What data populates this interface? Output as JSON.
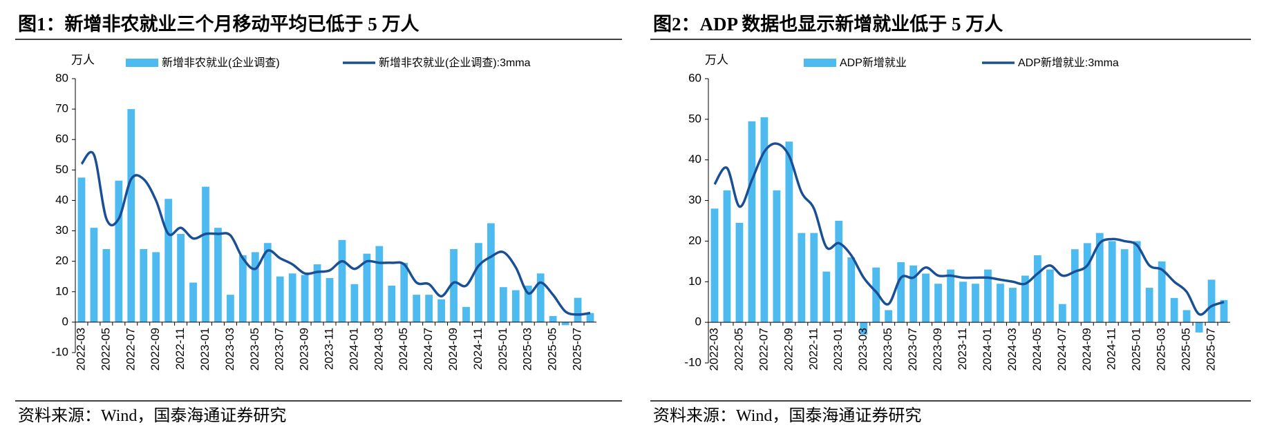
{
  "chart_data": [
    {
      "type": "combo",
      "title": "图1：新增非农就业三个月移动平均已低于 5 万人",
      "y_label": "万人",
      "source": "资料来源：Wind，国泰海通证券研究",
      "categories": [
        "2022-03",
        null,
        "2022-05",
        null,
        "2022-07",
        null,
        "2022-09",
        null,
        "2022-11",
        null,
        "2023-01",
        null,
        "2023-03",
        null,
        "2023-05",
        null,
        "2023-07",
        null,
        "2023-09",
        null,
        "2023-11",
        null,
        "2024-01",
        null,
        "2024-03",
        null,
        "2024-05",
        null,
        "2024-07",
        null,
        "2024-09",
        null,
        "2024-11",
        null,
        "2025-01",
        null,
        "2025-03",
        null,
        "2025-05",
        null,
        "2025-07",
        null
      ],
      "series": [
        {
          "name": "新增非农就业(企业调查)",
          "type": "bar",
          "color": "#4dbbef",
          "values": [
            47.5,
            31,
            24,
            46.5,
            70,
            24,
            23,
            40.5,
            29,
            13,
            44.5,
            31,
            9,
            22,
            23,
            26,
            15,
            16,
            15.5,
            19,
            14.5,
            27,
            12.5,
            22.5,
            25,
            12,
            19.5,
            9,
            9,
            7.5,
            24,
            5,
            26,
            32.5,
            11.5,
            10.5,
            12,
            16,
            2,
            -1,
            8,
            3
          ]
        },
        {
          "name": "新增非农就业(企业调查):3mma",
          "type": "line",
          "color": "#1a4f96",
          "values": [
            52,
            55,
            34,
            34,
            47,
            47,
            40,
            29,
            31,
            27.5,
            29,
            29,
            28.5,
            21,
            17.5,
            23.5,
            21,
            19,
            16,
            16.5,
            17,
            20,
            17.5,
            20,
            19.5,
            19.5,
            19,
            13,
            12.5,
            8.5,
            13,
            12,
            18.5,
            21.5,
            23,
            18,
            9.5,
            13,
            9,
            3.5,
            2.5,
            3
          ]
        }
      ],
      "ylim": [
        -10,
        80
      ],
      "yticks": [
        -10,
        0,
        10,
        20,
        30,
        40,
        50,
        60,
        70,
        80
      ],
      "grid": false
    },
    {
      "type": "combo",
      "title": "图2：ADP 数据也显示新增就业低于 5 万人",
      "y_label": "万人",
      "source": "资料来源：Wind，国泰海通证券研究",
      "categories": [
        "2022-03",
        null,
        "2022-05",
        null,
        "2022-07",
        null,
        "2022-09",
        null,
        "2022-11",
        null,
        "2023-01",
        null,
        "2023-03",
        null,
        "2023-05",
        null,
        "2023-07",
        null,
        "2023-09",
        null,
        "2023-11",
        null,
        "2024-01",
        null,
        "2024-03",
        null,
        "2024-05",
        null,
        "2024-07",
        null,
        "2024-09",
        null,
        "2024-11",
        null,
        "2025-01",
        null,
        "2025-03",
        null,
        "2025-05",
        null,
        "2025-07",
        null
      ],
      "series": [
        {
          "name": "ADP新增就业",
          "type": "bar",
          "color": "#4dbbef",
          "values": [
            28,
            32.5,
            24.5,
            49.5,
            50.5,
            32.5,
            44.5,
            22,
            22,
            12.5,
            25,
            16,
            -3,
            13.5,
            3,
            14.8,
            14,
            12,
            9.5,
            13,
            10,
            9.5,
            13,
            9.5,
            8.5,
            11.5,
            16.5,
            13,
            4.5,
            18,
            19.5,
            22,
            20,
            18,
            20,
            8.5,
            15,
            6,
            3,
            -2.5,
            10.5,
            5.5
          ]
        },
        {
          "name": "ADP新增就业:3mma",
          "type": "line",
          "color": "#1a4f96",
          "values": [
            34,
            38,
            28.5,
            35,
            42,
            44,
            41,
            32,
            28,
            18.5,
            19.5,
            16.5,
            11,
            7.5,
            4.5,
            11,
            11,
            13.5,
            11.5,
            11.5,
            11,
            11,
            11,
            10.5,
            10,
            9.5,
            12,
            14,
            11.5,
            12.5,
            14,
            19.5,
            20.5,
            20,
            19,
            14,
            13,
            10,
            7.5,
            2,
            4,
            5
          ]
        }
      ],
      "ylim": [
        -10,
        60
      ],
      "yticks": [
        -10,
        0,
        10,
        20,
        30,
        40,
        50,
        60
      ],
      "grid": false
    }
  ]
}
